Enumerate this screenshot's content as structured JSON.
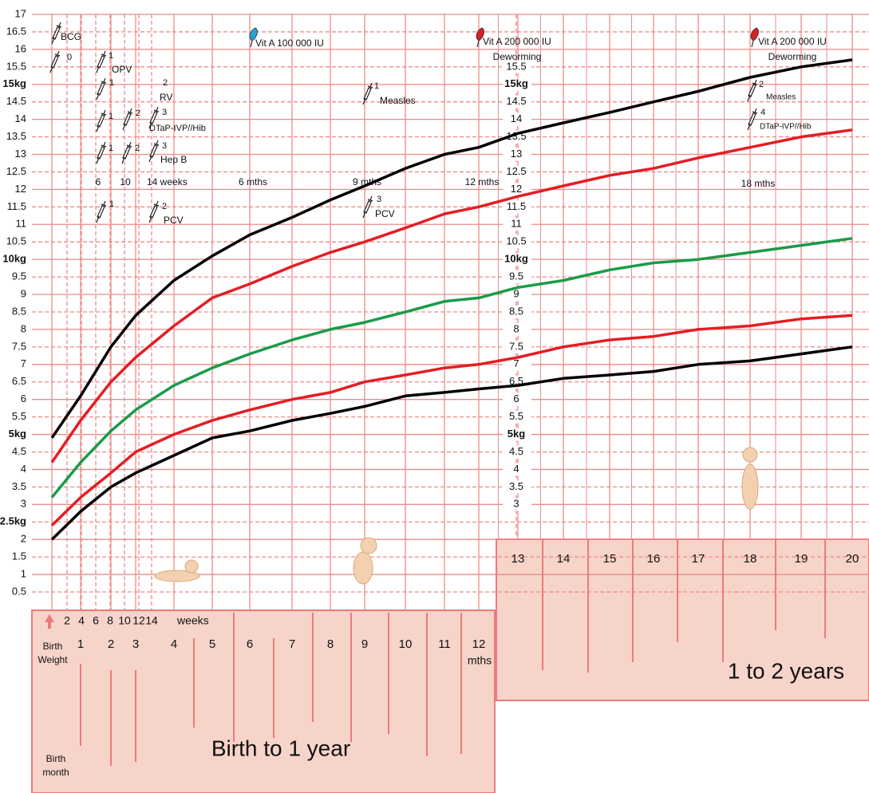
{
  "chart_data": {
    "type": "line",
    "x": [
      0,
      1,
      2,
      3,
      4,
      5,
      6,
      7,
      8,
      9,
      10,
      11,
      12,
      13,
      14,
      15,
      16,
      17,
      18,
      19,
      20
    ],
    "series": [
      {
        "color": "#000000",
        "values": [
          4.9,
          6.1,
          7.5,
          8.4,
          9.4,
          10.1,
          10.7,
          11.2,
          11.7,
          12.1,
          12.6,
          13.0,
          13.2,
          13.6,
          13.9,
          14.2,
          14.5,
          14.8,
          15.2,
          15.5,
          15.7
        ]
      },
      {
        "color": "#e31e24",
        "values": [
          4.2,
          5.4,
          6.5,
          7.2,
          8.1,
          8.9,
          9.3,
          9.8,
          10.2,
          10.5,
          10.9,
          11.3,
          11.5,
          11.8,
          12.1,
          12.4,
          12.6,
          12.9,
          13.2,
          13.5,
          13.7
        ]
      },
      {
        "color": "#1a9b48",
        "values": [
          3.2,
          4.2,
          5.1,
          5.7,
          6.4,
          6.9,
          7.3,
          7.7,
          8.0,
          8.2,
          8.5,
          8.8,
          8.9,
          9.2,
          9.4,
          9.7,
          9.9,
          10.0,
          10.2,
          10.4,
          10.6
        ]
      },
      {
        "color": "#e31e24",
        "values": [
          2.4,
          3.2,
          3.9,
          4.5,
          5.0,
          5.4,
          5.7,
          6.0,
          6.2,
          6.5,
          6.7,
          6.9,
          7.0,
          7.2,
          7.5,
          7.7,
          7.8,
          8.0,
          8.1,
          8.3,
          8.4
        ]
      },
      {
        "color": "#000000",
        "values": [
          2.0,
          2.8,
          3.5,
          3.9,
          4.4,
          4.9,
          5.1,
          5.4,
          5.6,
          5.8,
          6.1,
          6.2,
          6.3,
          6.4,
          6.6,
          6.7,
          6.8,
          7.0,
          7.1,
          7.3,
          7.5
        ]
      }
    ],
    "ylim": [
      0.5,
      17
    ],
    "yticks": [
      0.5,
      1,
      1.5,
      2,
      {
        "value": 2.5,
        "label": "2.5kg"
      },
      3,
      3.5,
      4,
      4.5,
      {
        "value": 5,
        "label": "5kg"
      },
      5.5,
      6,
      6.5,
      7,
      7.5,
      8,
      8.5,
      9,
      9.5,
      {
        "value": 10,
        "label": "10kg"
      },
      10.5,
      11,
      11.5,
      12,
      12.5,
      13,
      13.5,
      14,
      14.5,
      {
        "value": 15,
        "label": "15kg"
      },
      15.5,
      16,
      16.5,
      17
    ],
    "center_yticks": [
      3,
      3.5,
      4,
      4.5,
      {
        "value": 5,
        "label": "5kg"
      },
      5.5,
      6,
      6.5,
      7,
      7.5,
      8,
      8.5,
      9,
      9.5,
      {
        "value": 10,
        "label": "10kg"
      },
      10.5,
      11,
      11.5,
      12,
      12.5,
      13,
      13.5,
      14,
      14.5,
      {
        "value": 15,
        "label": "15kg"
      },
      15.5
    ],
    "grid": true,
    "weeks": [
      2,
      4,
      6,
      8,
      10,
      12,
      14
    ],
    "weeks_label": "weeks",
    "first_year": {
      "title": "Birth to 1 year",
      "months_unit": "mths",
      "birth_weight": [
        "Birth",
        "Weight"
      ],
      "birth_month": [
        "Birth",
        "month"
      ]
    },
    "second_year": {
      "title": "1 to 2 years"
    },
    "annotations": [
      "BCG",
      "0",
      "1",
      "OPV",
      "1",
      "2",
      "RV",
      "1",
      "2",
      "3",
      "DTaP-IVP//Hib",
      "1",
      "2",
      "3",
      "Hep B",
      "6",
      "10",
      "14 weeks",
      "6 mths",
      "9 mths",
      "12 mths",
      "18 mths",
      "1",
      "2",
      "PCV",
      "3",
      "PCV",
      "1",
      "Measles",
      "Vit A 100 000 IU",
      "Vit A 200 000 IU",
      "Deworming",
      "Vit A 200 000 IU",
      "Deworming",
      "2",
      "Measles",
      "4",
      "DTaP-IVP//Hib"
    ]
  }
}
